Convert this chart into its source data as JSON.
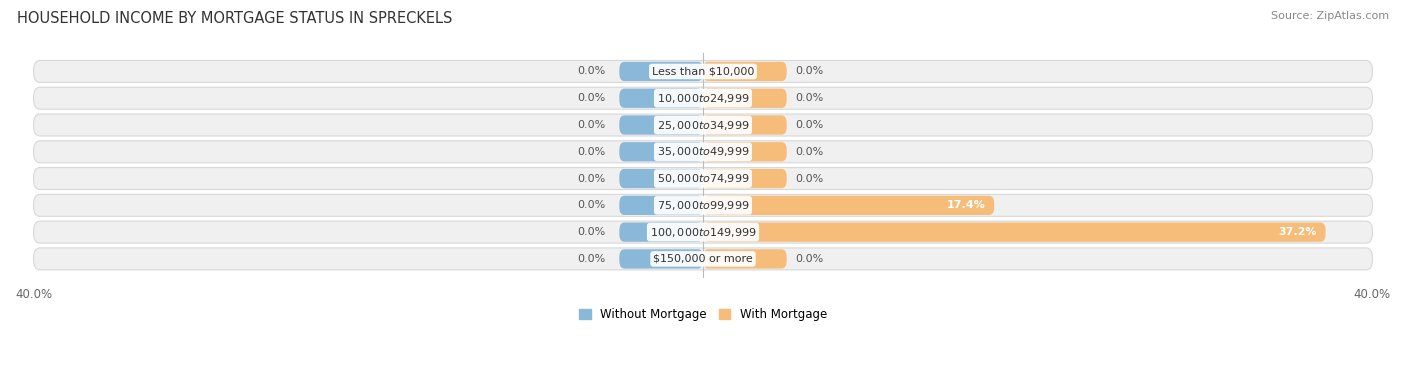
{
  "title": "HOUSEHOLD INCOME BY MORTGAGE STATUS IN SPRECKELS",
  "source": "Source: ZipAtlas.com",
  "categories": [
    "Less than $10,000",
    "$10,000 to $24,999",
    "$25,000 to $34,999",
    "$35,000 to $49,999",
    "$50,000 to $74,999",
    "$75,000 to $99,999",
    "$100,000 to $149,999",
    "$150,000 or more"
  ],
  "without_mortgage": [
    0.0,
    0.0,
    0.0,
    0.0,
    0.0,
    0.0,
    0.0,
    0.0
  ],
  "with_mortgage": [
    0.0,
    0.0,
    0.0,
    0.0,
    0.0,
    17.4,
    37.2,
    0.0
  ],
  "xlim": 40.0,
  "min_bar_width": 5.0,
  "color_without": "#8ab8d8",
  "color_with": "#f5bc7a",
  "color_row_bg": "#f0f0f0",
  "color_row_edge": "#d8d8d8",
  "color_center_line": "#bbbbbb",
  "legend_without": "Without Mortgage",
  "legend_with": "With Mortgage",
  "title_fontsize": 10.5,
  "source_fontsize": 8,
  "label_fontsize": 8,
  "tick_fontsize": 8.5,
  "category_fontsize": 8
}
